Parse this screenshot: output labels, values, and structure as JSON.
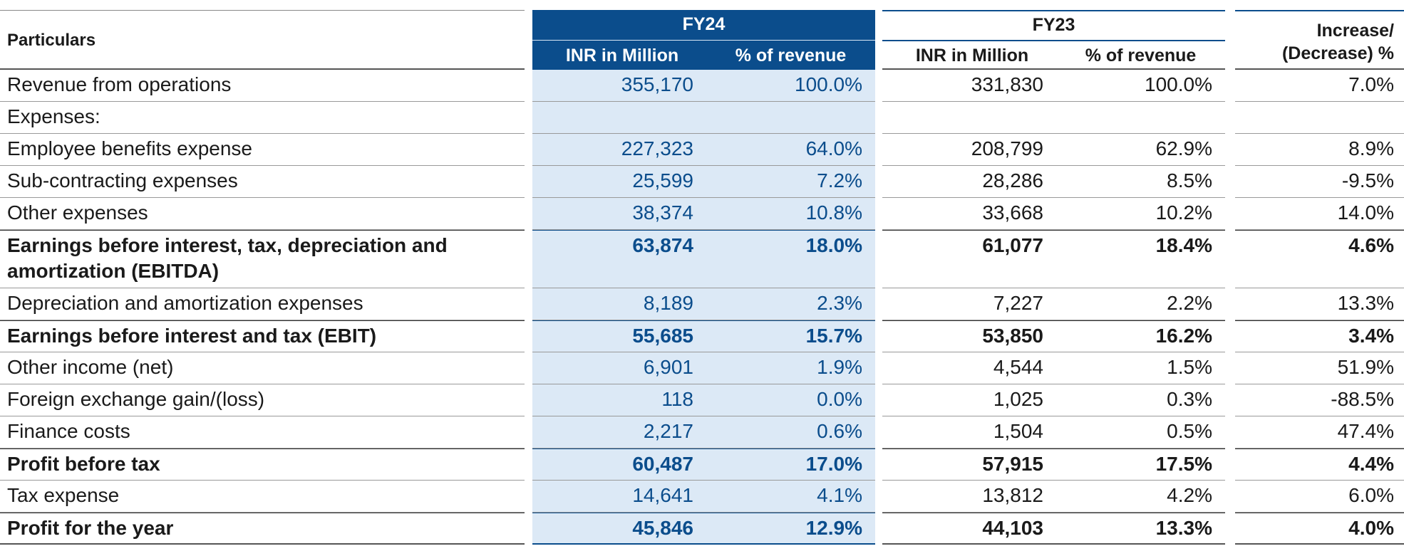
{
  "header": {
    "particulars": "Particulars",
    "fy24": "FY24",
    "fy23": "FY23",
    "inr_col": "INR in Million",
    "pct_col": "% of revenue",
    "increase": "Increase/\n(Decrease) %"
  },
  "rows": [
    {
      "label": "Revenue from operations",
      "fy24_inr": "355,170",
      "fy24_pct": "100.0%",
      "fy23_inr": "331,830",
      "fy23_pct": "100.0%",
      "change": "7.0%"
    },
    {
      "label": "Expenses:",
      "fy24_inr": "",
      "fy24_pct": "",
      "fy23_inr": "",
      "fy23_pct": "",
      "change": ""
    },
    {
      "label": "Employee benefits expense",
      "fy24_inr": "227,323",
      "fy24_pct": "64.0%",
      "fy23_inr": "208,799",
      "fy23_pct": "62.9%",
      "change": "8.9%"
    },
    {
      "label": "Sub-contracting expenses",
      "fy24_inr": "25,599",
      "fy24_pct": "7.2%",
      "fy23_inr": "28,286",
      "fy23_pct": "8.5%",
      "change": "-9.5%"
    },
    {
      "label": "Other expenses",
      "fy24_inr": "38,374",
      "fy24_pct": "10.8%",
      "fy23_inr": "33,668",
      "fy23_pct": "10.2%",
      "change": "14.0%"
    },
    {
      "label": "Earnings before interest, tax, depreciation and amortization (EBITDA)",
      "fy24_inr": "63,874",
      "fy24_pct": "18.0%",
      "fy23_inr": "61,077",
      "fy23_pct": "18.4%",
      "change": "4.6%"
    },
    {
      "label": "Depreciation and amortization expenses",
      "fy24_inr": "8,189",
      "fy24_pct": "2.3%",
      "fy23_inr": "7,227",
      "fy23_pct": "2.2%",
      "change": "13.3%"
    },
    {
      "label": "Earnings before interest and tax (EBIT)",
      "fy24_inr": "55,685",
      "fy24_pct": "15.7%",
      "fy23_inr": "53,850",
      "fy23_pct": "16.2%",
      "change": "3.4%"
    },
    {
      "label": "Other income (net)",
      "fy24_inr": "6,901",
      "fy24_pct": "1.9%",
      "fy23_inr": "4,544",
      "fy23_pct": "1.5%",
      "change": "51.9%"
    },
    {
      "label": "Foreign exchange gain/(loss)",
      "fy24_inr": "118",
      "fy24_pct": "0.0%",
      "fy23_inr": "1,025",
      "fy23_pct": "0.3%",
      "change": "-88.5%"
    },
    {
      "label": "Finance costs",
      "fy24_inr": "2,217",
      "fy24_pct": "0.6%",
      "fy23_inr": "1,504",
      "fy23_pct": "0.5%",
      "change": "47.4%"
    },
    {
      "label": "Profit before tax",
      "fy24_inr": "60,487",
      "fy24_pct": "17.0%",
      "fy23_inr": "57,915",
      "fy23_pct": "17.5%",
      "change": "4.4%"
    },
    {
      "label": "Tax expense",
      "fy24_inr": "14,641",
      "fy24_pct": "4.1%",
      "fy23_inr": "13,812",
      "fy23_pct": "4.2%",
      "change": "6.0%"
    },
    {
      "label": "Profit for the year",
      "fy24_inr": "45,846",
      "fy24_pct": "12.9%",
      "fy23_inr": "44,103",
      "fy23_pct": "13.3%",
      "change": "4.0%"
    }
  ],
  "colors": {
    "accent": "#0b4d8c",
    "fy24_fill": "#dce9f6"
  }
}
